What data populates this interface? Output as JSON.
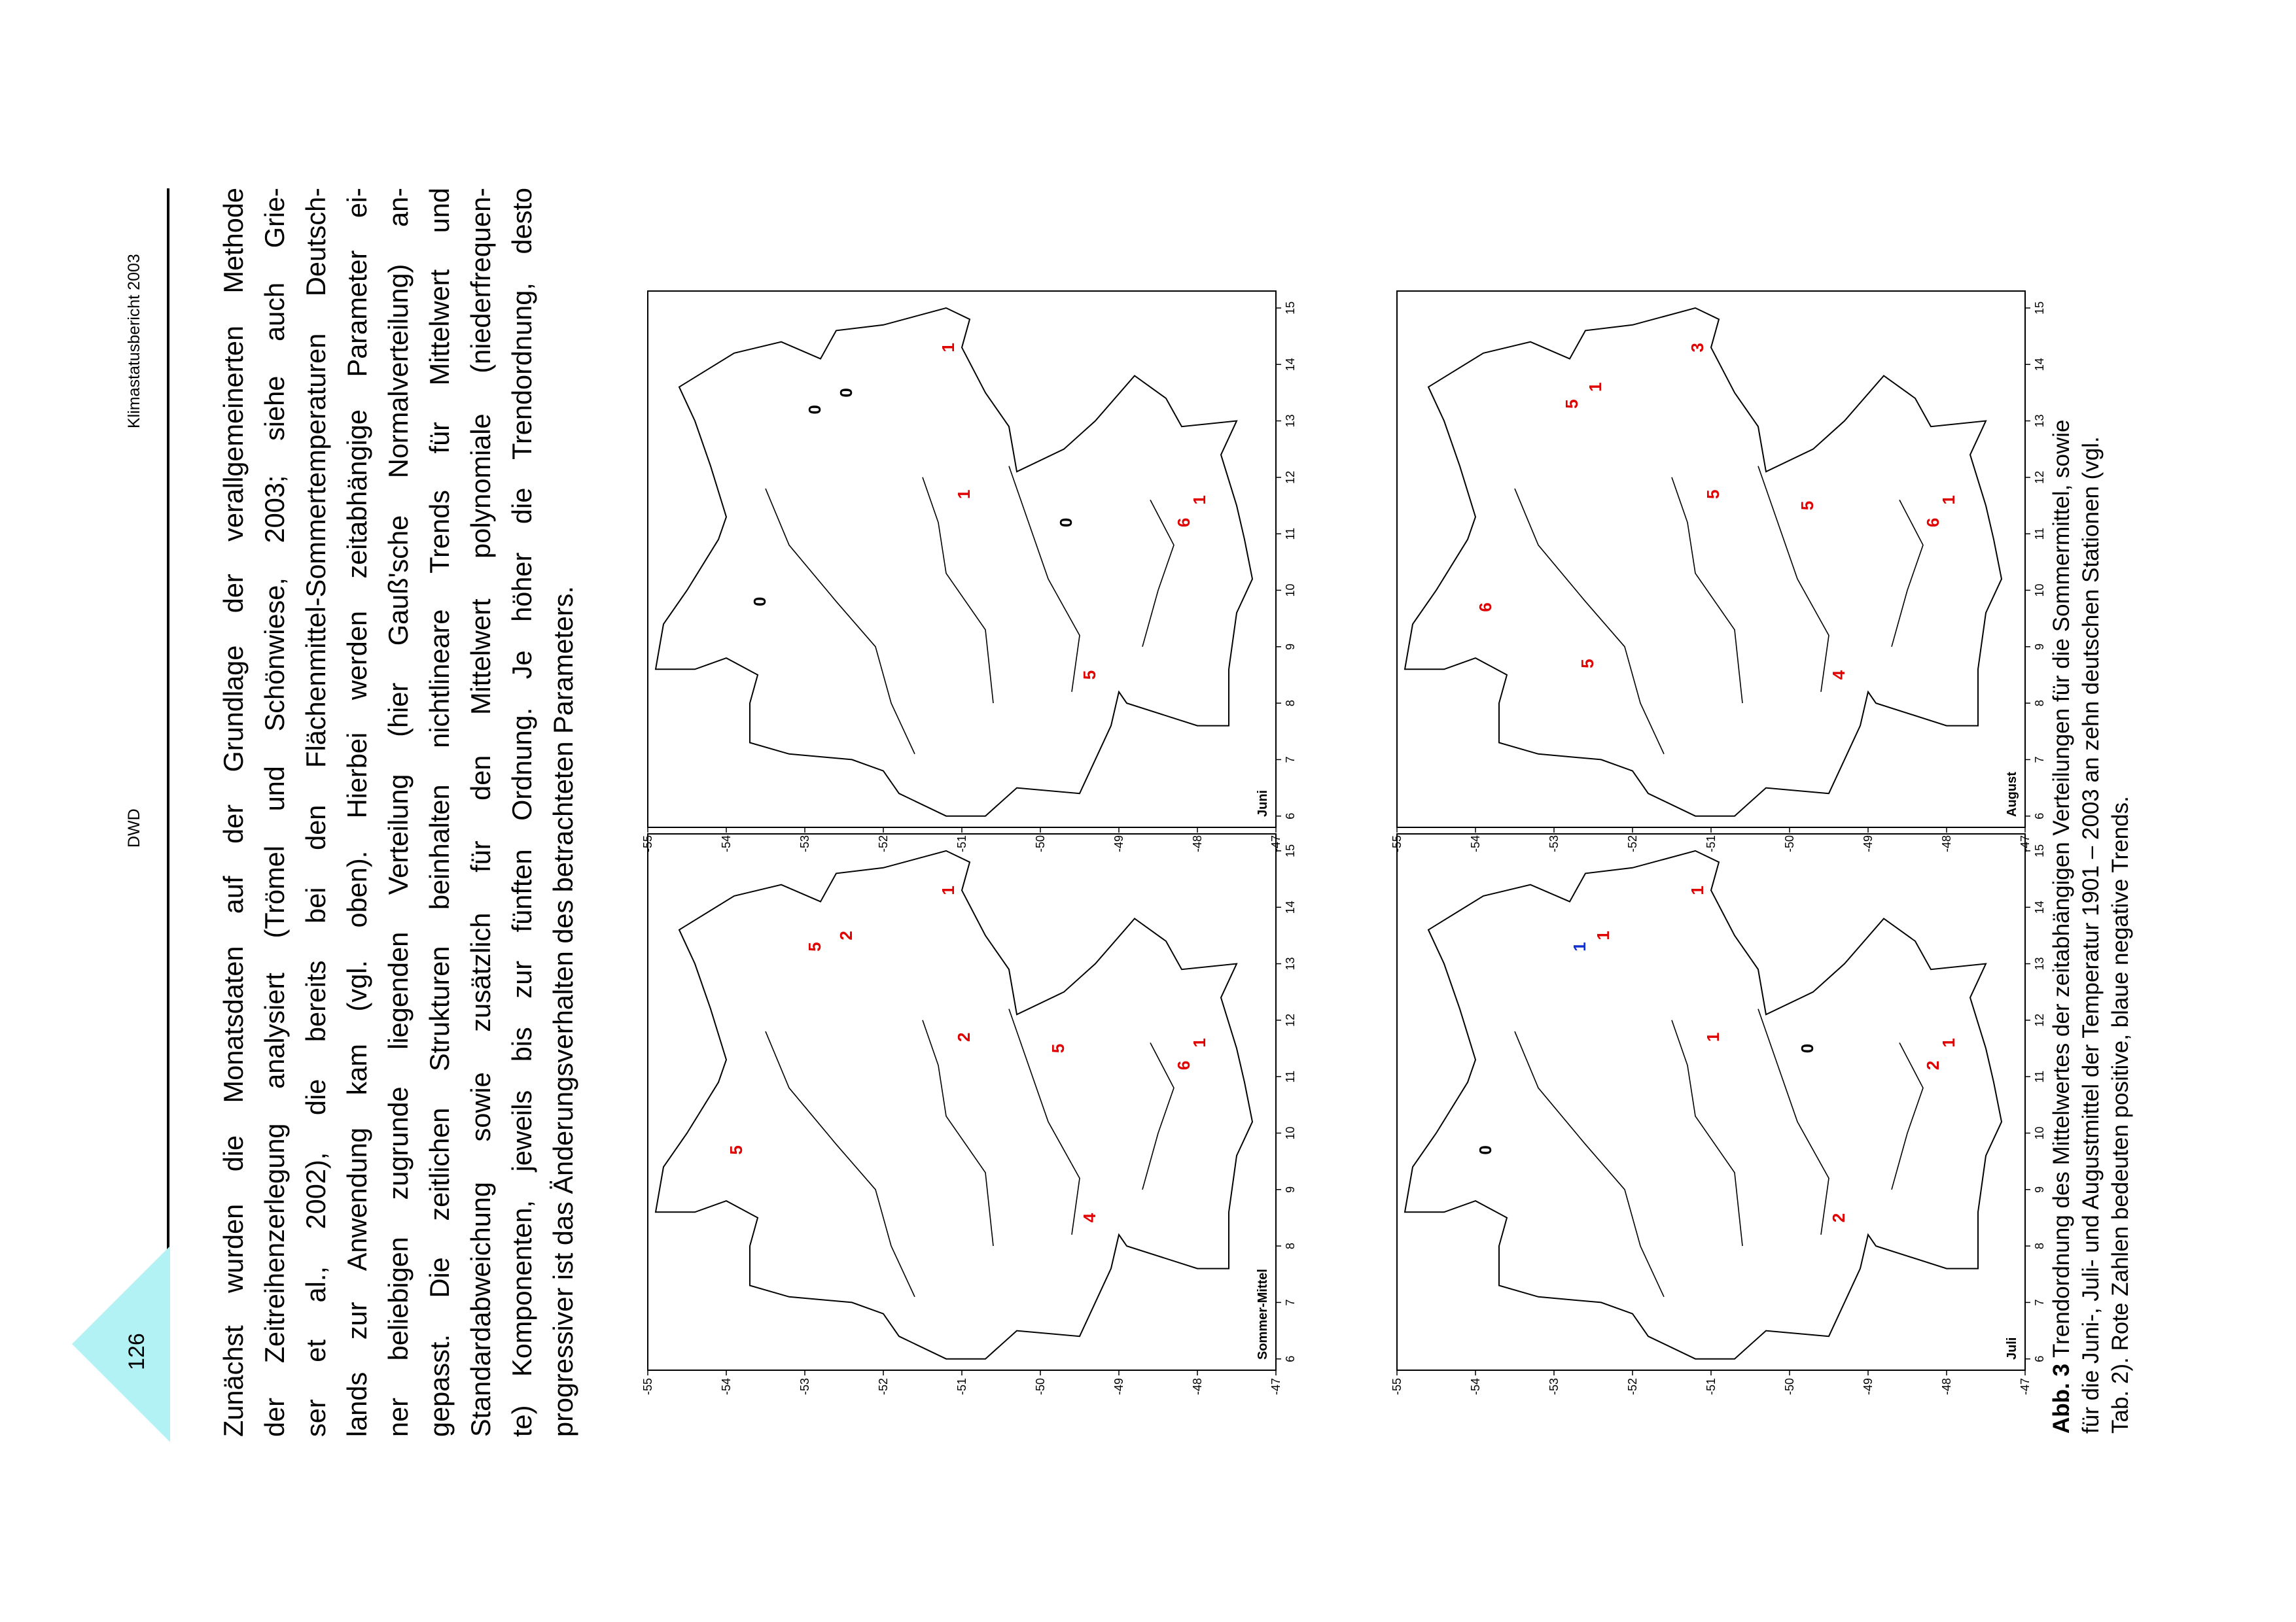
{
  "header": {
    "page_number": "126",
    "org": "DWD",
    "report": "Klimastatusbericht 2003"
  },
  "body_lines": [
    "Zunächst wurden die Monatsdaten auf der Grundlage der verallgemeinerten Methode",
    "der Zeitreihenzerlegung analysiert (Trömel und Schönwiese, 2003; siehe auch Grie-",
    "ser et al., 2002), die bereits bei den Flächenmittel-Sommertemperaturen Deutsch-",
    "lands zur Anwendung kam (vgl. oben). Hierbei werden zeitabhängige Parameter ei-",
    "ner beliebigen zugrunde liegenden Verteilung (hier Gauß'sche Normalverteilung) an-",
    "gepasst. Die zeitlichen Strukturen beinhalten nichtlineare Trends für Mittelwert und",
    "Standardabweichung sowie zusätzlich für den Mittelwert polynomiale (niederfrequen-",
    "te) Komponenten, jeweils bis zur fünften Ordnung. Je höher die Trendordnung, desto",
    "progressiver ist das Änderungsverhalten des betrachteten Parameters."
  ],
  "caption": {
    "label": "Abb. 3",
    "lines": [
      "Trendordnung des Mittelwertes der zeitabhängigen Verteilungen für die Sommermittel, sowie",
      "für die Juni-, Juli- und Augustmittel der Temperatur 1901 – 2003 an zehn deutschen Stationen (vgl.",
      "Tab. 2). Rote Zahlen bedeuten positive, blaue negative Trends."
    ]
  },
  "axis_ticks": {
    "lon": [
      "6",
      "7",
      "8",
      "9",
      "10",
      "11",
      "12",
      "13",
      "14",
      "15"
    ],
    "lat": [
      "55",
      "54",
      "53",
      "52",
      "51",
      "50",
      "49",
      "48",
      "47"
    ]
  },
  "colors": {
    "positive": "#e00000",
    "negative": "#1030d0",
    "triangle": "#b3f2f4"
  },
  "maps": [
    {
      "label": "Sommer-Mittel",
      "trends": [
        {
          "v": "5",
          "c": "positive",
          "lon": 9.7,
          "lat": 53.8
        },
        {
          "v": "5",
          "c": "positive",
          "lon": 13.3,
          "lat": 52.8
        },
        {
          "v": "2",
          "c": "positive",
          "lon": 13.5,
          "lat": 52.4
        },
        {
          "v": "1",
          "c": "positive",
          "lon": 14.3,
          "lat": 51.1
        },
        {
          "v": "2",
          "c": "positive",
          "lon": 11.7,
          "lat": 50.9
        },
        {
          "v": "5",
          "c": "positive",
          "lon": 11.5,
          "lat": 49.7
        },
        {
          "v": "4",
          "c": "positive",
          "lon": 8.5,
          "lat": 49.3
        },
        {
          "v": "6",
          "c": "positive",
          "lon": 11.2,
          "lat": 48.1
        },
        {
          "v": "1",
          "c": "positive",
          "lon": 11.6,
          "lat": 47.9
        }
      ]
    },
    {
      "label": "Juni",
      "trends": [
        {
          "v": "1",
          "c": "positive",
          "lon": 14.3,
          "lat": 51.1
        },
        {
          "v": "1",
          "c": "positive",
          "lon": 11.7,
          "lat": 50.9
        },
        {
          "v": "0",
          "c": "neutral",
          "lon": 13.2,
          "lat": 52.8
        },
        {
          "v": "0",
          "c": "neutral",
          "lon": 13.5,
          "lat": 52.4
        },
        {
          "v": "0",
          "c": "neutral",
          "lon": 9.8,
          "lat": 53.5
        },
        {
          "v": "0",
          "c": "neutral",
          "lon": 11.2,
          "lat": 49.6
        },
        {
          "v": "5",
          "c": "positive",
          "lon": 8.5,
          "lat": 49.3
        },
        {
          "v": "6",
          "c": "positive",
          "lon": 11.2,
          "lat": 48.1
        },
        {
          "v": "1",
          "c": "positive",
          "lon": 11.6,
          "lat": 47.9
        }
      ]
    },
    {
      "label": "Juli",
      "trends": [
        {
          "v": "0",
          "c": "neutral",
          "lon": 9.7,
          "lat": 53.8
        },
        {
          "v": "1",
          "c": "negative",
          "lon": 13.3,
          "lat": 52.6
        },
        {
          "v": "1",
          "c": "positive",
          "lon": 13.5,
          "lat": 52.3
        },
        {
          "v": "1",
          "c": "positive",
          "lon": 14.3,
          "lat": 51.1
        },
        {
          "v": "1",
          "c": "positive",
          "lon": 11.7,
          "lat": 50.9
        },
        {
          "v": "0",
          "c": "neutral",
          "lon": 11.5,
          "lat": 49.7
        },
        {
          "v": "2",
          "c": "positive",
          "lon": 8.5,
          "lat": 49.3
        },
        {
          "v": "2",
          "c": "positive",
          "lon": 11.2,
          "lat": 48.1
        },
        {
          "v": "1",
          "c": "positive",
          "lon": 11.6,
          "lat": 47.9
        }
      ]
    },
    {
      "label": "August",
      "trends": [
        {
          "v": "6",
          "c": "positive",
          "lon": 9.7,
          "lat": 53.8
        },
        {
          "v": "5",
          "c": "positive",
          "lon": 8.7,
          "lat": 52.5
        },
        {
          "v": "5",
          "c": "positive",
          "lon": 13.3,
          "lat": 52.7
        },
        {
          "v": "1",
          "c": "positive",
          "lon": 13.6,
          "lat": 52.4
        },
        {
          "v": "3",
          "c": "positive",
          "lon": 14.3,
          "lat": 51.1
        },
        {
          "v": "5",
          "c": "positive",
          "lon": 11.7,
          "lat": 50.9
        },
        {
          "v": "5",
          "c": "positive",
          "lon": 11.5,
          "lat": 49.7
        },
        {
          "v": "4",
          "c": "positive",
          "lon": 8.5,
          "lat": 49.3
        },
        {
          "v": "6",
          "c": "positive",
          "lon": 11.2,
          "lat": 48.1
        },
        {
          "v": "1",
          "c": "positive",
          "lon": 11.6,
          "lat": 47.9
        }
      ]
    }
  ]
}
